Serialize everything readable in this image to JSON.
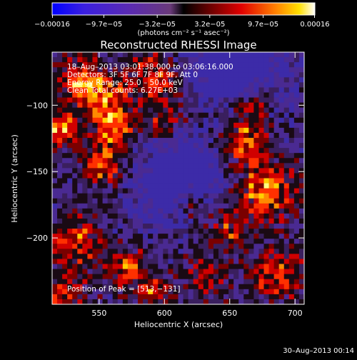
{
  "chart_data": {
    "type": "heatmap",
    "title": "Reconstructed RHESSI Image",
    "xlabel": "Heliocentric X (arcsec)",
    "ylabel": "Heliocentric Y (arcsec)",
    "xlim": [
      514,
      707
    ],
    "ylim": [
      -250,
      -60
    ],
    "x_ticks": [
      550,
      600,
      650,
      700
    ],
    "y_ticks": [
      -100,
      -150,
      -200
    ],
    "x_tick_labels": [
      "550",
      "600",
      "650",
      "700"
    ],
    "y_tick_labels": [
      "−100",
      "−150",
      "−200"
    ],
    "colorbar": {
      "min": -0.00016,
      "max": 0.00016,
      "tick_values": [
        -0.00016,
        -9.7e-05,
        -3.2e-05,
        3.2e-05,
        9.7e-05,
        0.00016
      ],
      "tick_labels": [
        "−0.00016",
        "−9.7e−05",
        "−3.2e−05",
        "3.2e−05",
        "9.7e−05",
        "0.00016"
      ],
      "units": "(photons cm⁻² s⁻¹ asec⁻²)"
    },
    "annotations": {
      "time_range": "18–Aug–2013 03:01:38.000 to 03:06:16.000",
      "detectors": "Detectors: 3F 5F 6F 7F 8F 9F, Att 0",
      "energy_range": "Energy Range: 25.0 – 50.0 keV",
      "clean": "Clean     Total counts: 6.27E+03",
      "peak": "Position of Peak = [513,−131]"
    },
    "grid": false,
    "legend": "colorbar-top"
  },
  "footer": {
    "timestamp": "30–Aug–2013 00:14"
  }
}
